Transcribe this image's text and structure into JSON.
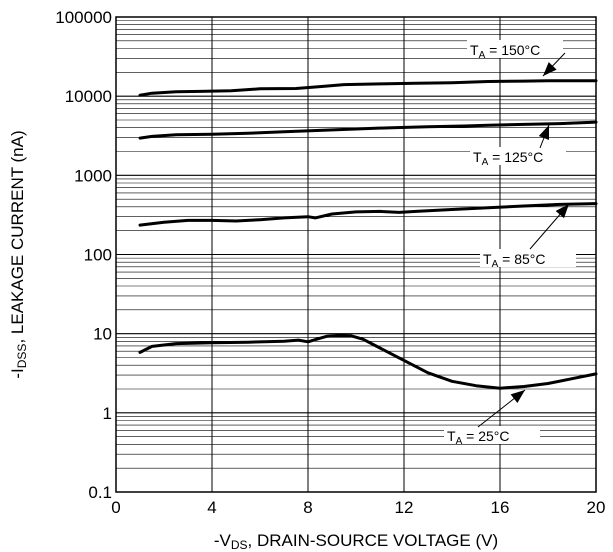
{
  "chart_data": {
    "type": "line",
    "xlabel": {
      "prefix": "-V",
      "sub": "DS",
      "rest": ", DRAIN-SOURCE VOLTAGE (V)"
    },
    "ylabel": {
      "prefix": "-I",
      "sub": "DSS",
      "rest": ", LEAKAGE CURRENT (nA)"
    },
    "xlim": [
      0,
      20
    ],
    "ylim": [
      0.1,
      100000
    ],
    "yscale": "log",
    "grid": true,
    "x_ticks": [
      0,
      4,
      8,
      12,
      16,
      20
    ],
    "x_tick_labels": [
      "0",
      "4",
      "8",
      "12",
      "16",
      "20"
    ],
    "y_ticks": [
      0.1,
      1,
      10,
      100,
      1000,
      10000,
      100000
    ],
    "y_tick_labels": [
      "0.1",
      "1",
      "10",
      "100",
      "1000",
      "10000",
      "100000"
    ],
    "series": [
      {
        "name": "T_A = 150°C",
        "label": {
          "pre": "T",
          "sub": "A",
          "post": " = 150°C"
        },
        "x": [
          1,
          1.5,
          2.5,
          3.5,
          4.8,
          6,
          7.5,
          8.5,
          9.5,
          11,
          12.5,
          14,
          15.5,
          17,
          18,
          20
        ],
        "y": [
          10300,
          10900,
          11400,
          11500,
          11700,
          12400,
          12500,
          13200,
          14000,
          14300,
          14600,
          14800,
          15300,
          15500,
          15700,
          15700
        ]
      },
      {
        "name": "T_A = 125°C",
        "label": {
          "pre": "T",
          "sub": "A",
          "post": " = 125°C"
        },
        "x": [
          1,
          1.5,
          2.5,
          4,
          5.5,
          7,
          8.5,
          10,
          11.5,
          13,
          14.5,
          15.5,
          17,
          18.5,
          20
        ],
        "y": [
          2950,
          3100,
          3250,
          3300,
          3400,
          3550,
          3700,
          3850,
          4000,
          4100,
          4200,
          4300,
          4400,
          4500,
          4700
        ]
      },
      {
        "name": "T_A = 85°C",
        "label": {
          "pre": "T",
          "sub": "A",
          "post": " = 85°C"
        },
        "x": [
          1,
          2,
          3,
          4,
          5,
          6,
          7,
          8,
          8.3,
          9,
          10,
          11,
          11.8,
          12.5,
          14,
          15.5,
          17,
          18.5,
          20
        ],
        "y": [
          235,
          255,
          270,
          270,
          265,
          275,
          290,
          300,
          290,
          325,
          345,
          350,
          340,
          350,
          370,
          390,
          410,
          430,
          440
        ]
      },
      {
        "name": "T_A = 25°C",
        "label": {
          "pre": "T",
          "sub": "A",
          "post": " = 25°C"
        },
        "x": [
          1,
          1.5,
          2.5,
          4,
          5.5,
          7,
          7.6,
          8,
          8.4,
          8.8,
          9.3,
          9.8,
          10.3,
          11,
          12,
          13,
          14,
          15,
          16,
          17,
          18,
          19,
          20
        ],
        "y": [
          5.8,
          6.9,
          7.5,
          7.7,
          7.8,
          8.0,
          8.3,
          7.9,
          8.6,
          9.3,
          9.5,
          9.4,
          8.5,
          6.6,
          4.6,
          3.2,
          2.5,
          2.2,
          2.05,
          2.15,
          2.35,
          2.7,
          3.1
        ]
      }
    ]
  }
}
